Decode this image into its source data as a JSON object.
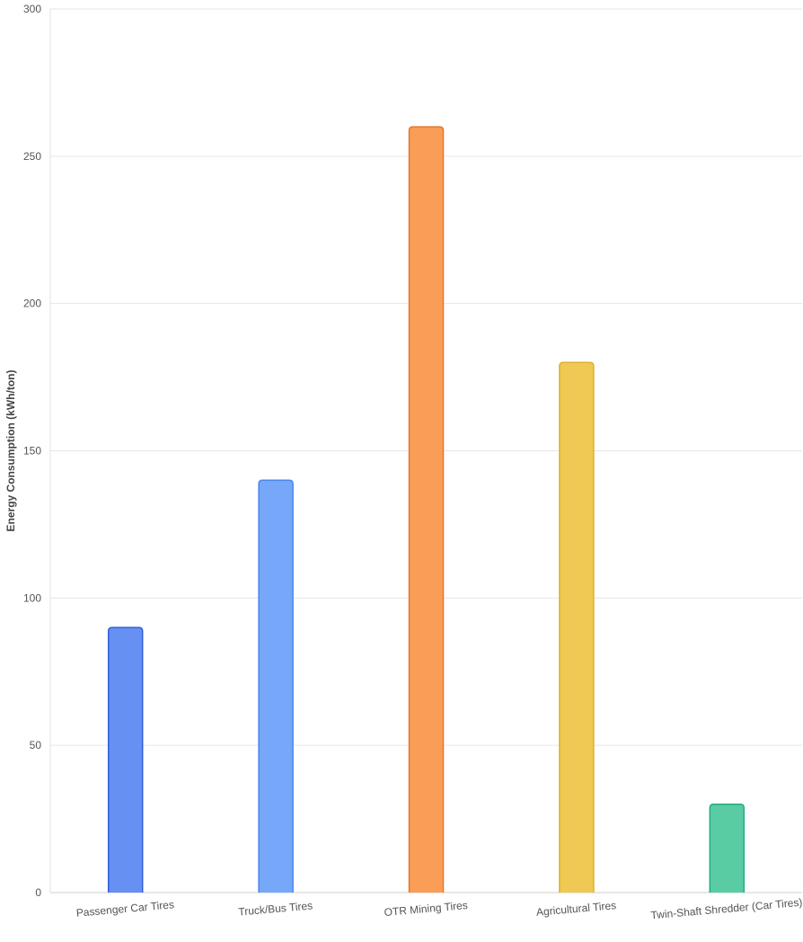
{
  "chart_data": {
    "type": "bar",
    "title": "",
    "xlabel": "",
    "ylabel": "Energy Consumption (kWh/ton)",
    "ylim": [
      0,
      300
    ],
    "yticks": [
      0,
      50,
      100,
      150,
      200,
      250,
      300
    ],
    "grid": true,
    "legend": "none",
    "categories": [
      "Passenger Car Tires",
      "Truck/Bus Tires",
      "OTR Mining Tires",
      "Agricultural Tires",
      "Twin-Shaft Shredder (Car Tires)"
    ],
    "values": [
      90,
      140,
      260,
      180,
      30
    ],
    "colors": [
      {
        "fill": "#6690f2",
        "stroke": "#2f5fd9"
      },
      {
        "fill": "#76a7f8",
        "stroke": "#4a86ef"
      },
      {
        "fill": "#f99d57",
        "stroke": "#e8782a"
      },
      {
        "fill": "#efc954",
        "stroke": "#ddb026"
      },
      {
        "fill": "#59cca4",
        "stroke": "#24ad7f"
      }
    ]
  }
}
